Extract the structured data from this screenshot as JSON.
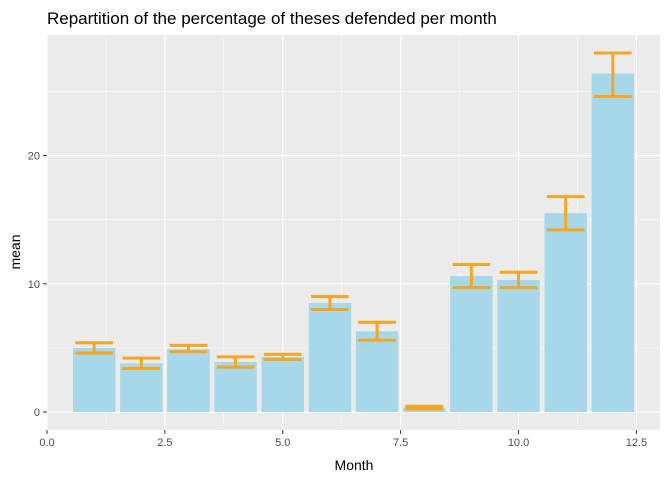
{
  "chart_data": {
    "type": "bar",
    "title": "Repartition of the percentage of theses defended per month",
    "xlabel": "Month",
    "ylabel": "mean",
    "x": [
      1,
      2,
      3,
      4,
      5,
      6,
      7,
      8,
      9,
      10,
      11,
      12
    ],
    "values": [
      5.0,
      3.8,
      4.9,
      3.9,
      4.3,
      8.5,
      6.3,
      0.35,
      10.6,
      10.3,
      15.5,
      26.4
    ],
    "error_low": [
      4.6,
      3.4,
      4.7,
      3.5,
      4.1,
      8.0,
      5.6,
      0.25,
      9.7,
      9.7,
      14.2,
      24.6
    ],
    "error_high": [
      5.4,
      4.2,
      5.2,
      4.3,
      4.5,
      9.0,
      7.0,
      0.45,
      11.5,
      10.9,
      16.8,
      28.0
    ],
    "x_ticks": [
      "0.0",
      "2.5",
      "5.0",
      "7.5",
      "10.0",
      "12.5"
    ],
    "y_ticks": [
      "0",
      "10",
      "20"
    ],
    "xlim": [
      0,
      13
    ],
    "ylim": [
      -1.4,
      29.4
    ],
    "grid": true,
    "colors": {
      "panel": "#ebebeb",
      "grid_major": "#ffffff",
      "bar": "#a6d8ea",
      "errorbar": "#f5a623",
      "tick": "#333333"
    }
  }
}
